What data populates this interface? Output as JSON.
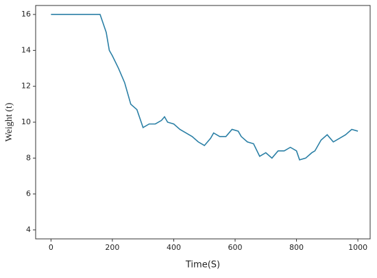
{
  "chart_data": {
    "type": "line",
    "x_label": "Time(S)",
    "y_label": "Weight (t)",
    "xlim": [
      -50,
      1040
    ],
    "ylim": [
      3.5,
      16.5
    ],
    "xticks": [
      0,
      200,
      400,
      600,
      800,
      1000
    ],
    "yticks": [
      4,
      6,
      8,
      10,
      12,
      14,
      16
    ],
    "x": [
      0,
      160,
      170,
      180,
      190,
      200,
      220,
      240,
      260,
      280,
      290,
      300,
      320,
      340,
      360,
      370,
      380,
      400,
      420,
      440,
      460,
      480,
      500,
      520,
      530,
      550,
      570,
      590,
      610,
      620,
      640,
      660,
      680,
      700,
      720,
      740,
      760,
      780,
      800,
      810,
      830,
      850,
      860,
      880,
      900,
      920,
      940,
      960,
      980,
      1000
    ],
    "series": [
      {
        "name": "Weight",
        "color": "#2a7fa5",
        "values": [
          16,
          16,
          15.5,
          15.0,
          14.0,
          13.7,
          13.0,
          12.2,
          11.0,
          10.7,
          10.2,
          9.7,
          9.9,
          9.9,
          10.1,
          10.3,
          10.0,
          9.9,
          9.6,
          9.4,
          9.2,
          8.9,
          8.7,
          9.1,
          9.4,
          9.2,
          9.2,
          9.6,
          9.5,
          9.2,
          8.9,
          8.8,
          8.1,
          8.3,
          8.0,
          8.4,
          8.4,
          8.6,
          8.4,
          7.9,
          8.0,
          8.3,
          8.4,
          9.0,
          9.3,
          8.9,
          9.1,
          9.3,
          9.6,
          9.5
        ]
      }
    ]
  }
}
